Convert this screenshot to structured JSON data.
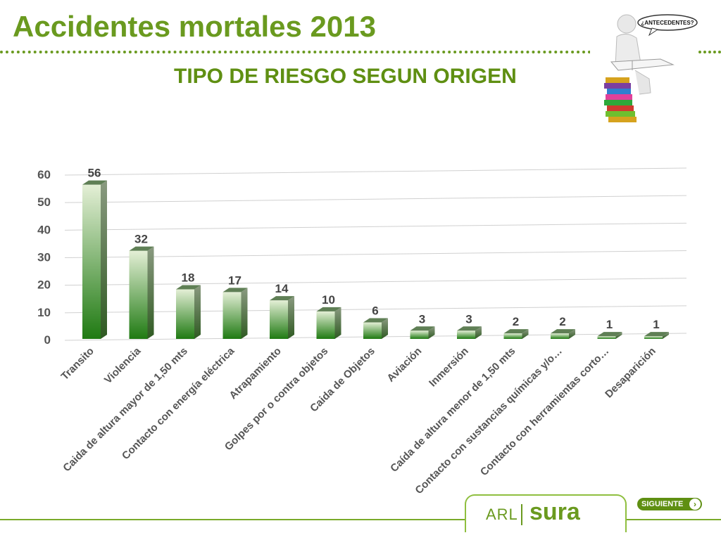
{
  "page": {
    "title": "Accidentes mortales 2013",
    "subtitle": "TIPO DE RIESGO SEGUN ORIGEN",
    "speech_bubble": "¿ANTECEDENTES?",
    "illustration_icon": "person-reading-on-books-icon",
    "logo": {
      "arl": "ARL",
      "brand": "sura"
    },
    "next_button": {
      "label": "SIGUIENTE",
      "icon": "chevron-right-icon"
    },
    "accent_color": "#6a9a1f"
  },
  "chart_data": {
    "type": "bar",
    "title": "",
    "xlabel": "",
    "ylabel": "",
    "ylim": [
      0,
      60
    ],
    "yticks": [
      0,
      10,
      20,
      30,
      40,
      50,
      60
    ],
    "grid": true,
    "categories": [
      "Transito",
      "Violencia",
      "Caida de altura mayor de 1,50 mts",
      "Contacto con energía eléctrica",
      "Atrapamiento",
      "Golpes por o contra objetos",
      "Caida de Objetos",
      "Aviación",
      "Inmersión",
      "Caída de altura menor de 1,50 mts",
      "Contacto con sustancias químicas y/o…",
      "Contacto con herramientas corto…",
      "Desaparición"
    ],
    "values": [
      56,
      32,
      18,
      17,
      14,
      10,
      6,
      3,
      3,
      2,
      2,
      1,
      1
    ],
    "bar_color_top": "#e4efd6",
    "bar_color_bottom": "#1f7a12"
  }
}
